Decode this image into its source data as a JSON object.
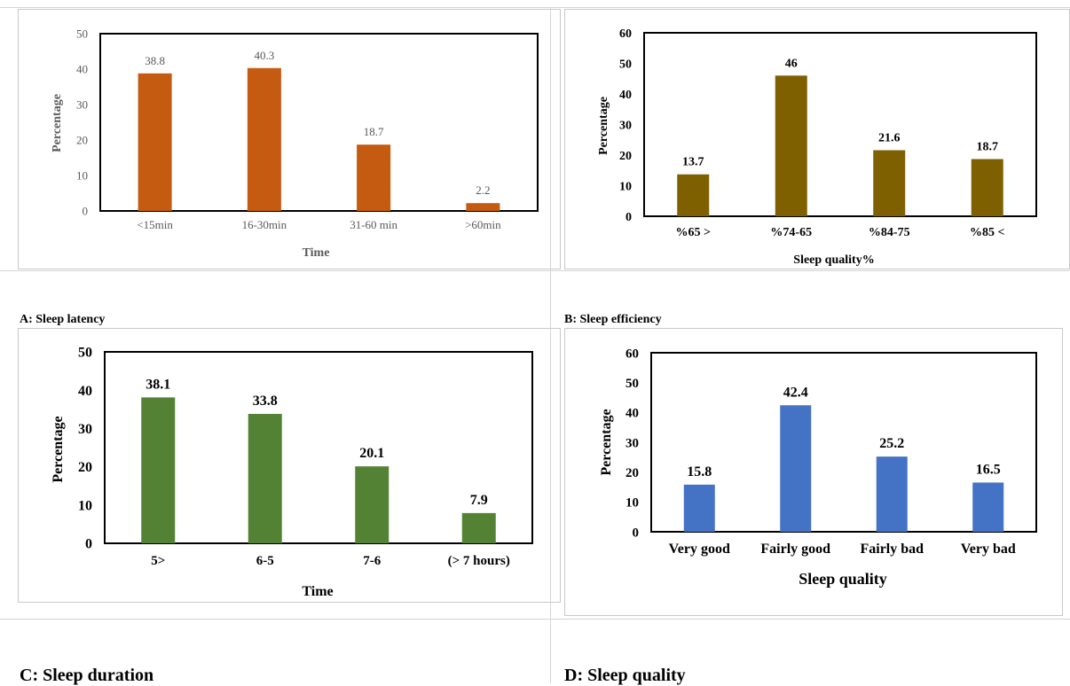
{
  "chart_data": [
    {
      "panel": "A",
      "type": "bar",
      "caption": "A: Sleep latency",
      "xlabel": "Time",
      "ylabel": "Percentage",
      "categories": [
        "<15min",
        "16-30min",
        "31-60 min",
        ">60min"
      ],
      "values": [
        38.8,
        40.3,
        18.7,
        2.2
      ],
      "value_labels": [
        "38.8",
        "40.3",
        "18.7",
        "2.2"
      ],
      "ylim": [
        0,
        50
      ],
      "yticks": [
        0,
        10,
        20,
        30,
        40,
        50
      ],
      "color": "#c55a11",
      "grid": false
    },
    {
      "panel": "B",
      "type": "bar",
      "caption": "B: Sleep efficiency",
      "xlabel": "Sleep quality%",
      "ylabel": "Percentage",
      "categories": [
        "%65 >",
        "%74-65",
        "%84-75",
        "%85 <"
      ],
      "values": [
        13.7,
        46,
        21.6,
        18.7
      ],
      "value_labels": [
        "13.7",
        "46",
        "21.6",
        "18.7"
      ],
      "ylim": [
        0,
        60
      ],
      "yticks": [
        0,
        10,
        20,
        30,
        40,
        50,
        60
      ],
      "color": "#7f6000",
      "grid": false
    },
    {
      "panel": "C",
      "type": "bar",
      "caption": "C: Sleep duration",
      "xlabel": "Time",
      "ylabel": "Percentage",
      "categories": [
        "5>",
        "6-5",
        "7-6",
        "(> 7 hours)"
      ],
      "values": [
        38.1,
        33.8,
        20.1,
        7.9
      ],
      "value_labels": [
        "38.1",
        "33.8",
        "20.1",
        "7.9"
      ],
      "ylim": [
        0,
        50
      ],
      "yticks": [
        0,
        10,
        20,
        30,
        40,
        50
      ],
      "color": "#548235",
      "grid": false
    },
    {
      "panel": "D",
      "type": "bar",
      "caption": "D: Sleep quality",
      "xlabel": "Sleep quality",
      "ylabel": "Percentage",
      "categories": [
        "Very good",
        "Fairly good",
        "Fairly bad",
        "Very bad"
      ],
      "values": [
        15.8,
        42.4,
        25.2,
        16.5
      ],
      "value_labels": [
        "15.8",
        "42.4",
        "25.2",
        "16.5"
      ],
      "ylim": [
        0,
        60
      ],
      "yticks": [
        0,
        10,
        20,
        30,
        40,
        50,
        60
      ],
      "color": "#4472c4",
      "grid": false
    }
  ]
}
